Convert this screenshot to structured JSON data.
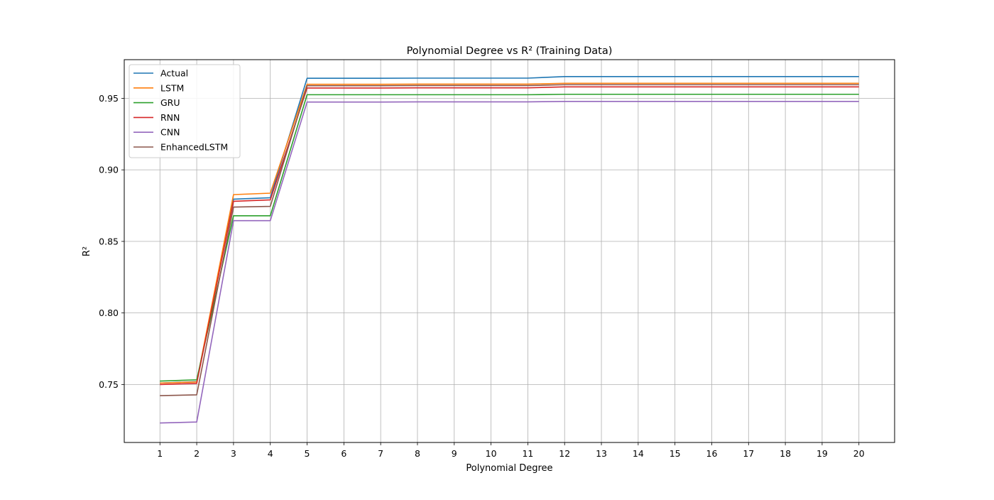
{
  "chart_data": {
    "type": "line",
    "title": "Polynomial Degree vs R² (Training Data)",
    "xlabel": "Polynomial Degree",
    "ylabel": "R²",
    "x": [
      1,
      2,
      3,
      4,
      5,
      6,
      7,
      8,
      9,
      10,
      11,
      12,
      13,
      14,
      15,
      16,
      17,
      18,
      19,
      20
    ],
    "xlim": [
      0.03,
      20.97
    ],
    "ylim": [
      0.7095,
      0.977
    ],
    "yticks": [
      0.75,
      0.8,
      0.85,
      0.9,
      0.95
    ],
    "ytick_labels": [
      "0.75",
      "0.80",
      "0.85",
      "0.90",
      "0.95"
    ],
    "xtick_labels": [
      "1",
      "2",
      "3",
      "4",
      "5",
      "6",
      "7",
      "8",
      "9",
      "10",
      "11",
      "12",
      "13",
      "14",
      "15",
      "16",
      "17",
      "18",
      "19",
      "20"
    ],
    "grid": true,
    "legend_position": "upper-left",
    "series": [
      {
        "name": "Actual",
        "color": "#1f77b4",
        "values": [
          0.751,
          0.752,
          0.8795,
          0.8805,
          0.964,
          0.964,
          0.964,
          0.9641,
          0.9641,
          0.9641,
          0.9641,
          0.9652,
          0.9652,
          0.9652,
          0.9652,
          0.9652,
          0.9652,
          0.9652,
          0.9652,
          0.9652
        ]
      },
      {
        "name": "LSTM",
        "color": "#ff7f0e",
        "values": [
          0.751,
          0.7518,
          0.8827,
          0.8837,
          0.9598,
          0.9598,
          0.9598,
          0.9599,
          0.9599,
          0.9599,
          0.9599,
          0.9605,
          0.9605,
          0.9605,
          0.9605,
          0.9605,
          0.9605,
          0.9605,
          0.9605,
          0.9605
        ]
      },
      {
        "name": "GRU",
        "color": "#2ca02c",
        "values": [
          0.7524,
          0.7533,
          0.8679,
          0.8679,
          0.9525,
          0.9525,
          0.9525,
          0.9525,
          0.9525,
          0.9525,
          0.9525,
          0.9528,
          0.9528,
          0.9528,
          0.9528,
          0.9528,
          0.9528,
          0.9528,
          0.9528,
          0.9528
        ]
      },
      {
        "name": "RNN",
        "color": "#d62728",
        "values": [
          0.75,
          0.7508,
          0.878,
          0.879,
          0.9572,
          0.9572,
          0.9572,
          0.9573,
          0.9573,
          0.9573,
          0.9573,
          0.958,
          0.958,
          0.958,
          0.958,
          0.958,
          0.958,
          0.958,
          0.958,
          0.958
        ]
      },
      {
        "name": "CNN",
        "color": "#9467bd",
        "values": [
          0.7231,
          0.7238,
          0.8645,
          0.8645,
          0.9474,
          0.9474,
          0.9474,
          0.9475,
          0.9475,
          0.9475,
          0.9475,
          0.9478,
          0.9478,
          0.9478,
          0.9478,
          0.9478,
          0.9478,
          0.9478,
          0.9478,
          0.9478
        ]
      },
      {
        "name": "EnhancedLSTM",
        "color": "#8c564b",
        "values": [
          0.7422,
          0.7428,
          0.874,
          0.8745,
          0.9588,
          0.9588,
          0.9588,
          0.9589,
          0.9589,
          0.9589,
          0.9589,
          0.9595,
          0.9595,
          0.9595,
          0.9595,
          0.9595,
          0.9595,
          0.9595,
          0.9595,
          0.9595
        ]
      }
    ]
  }
}
